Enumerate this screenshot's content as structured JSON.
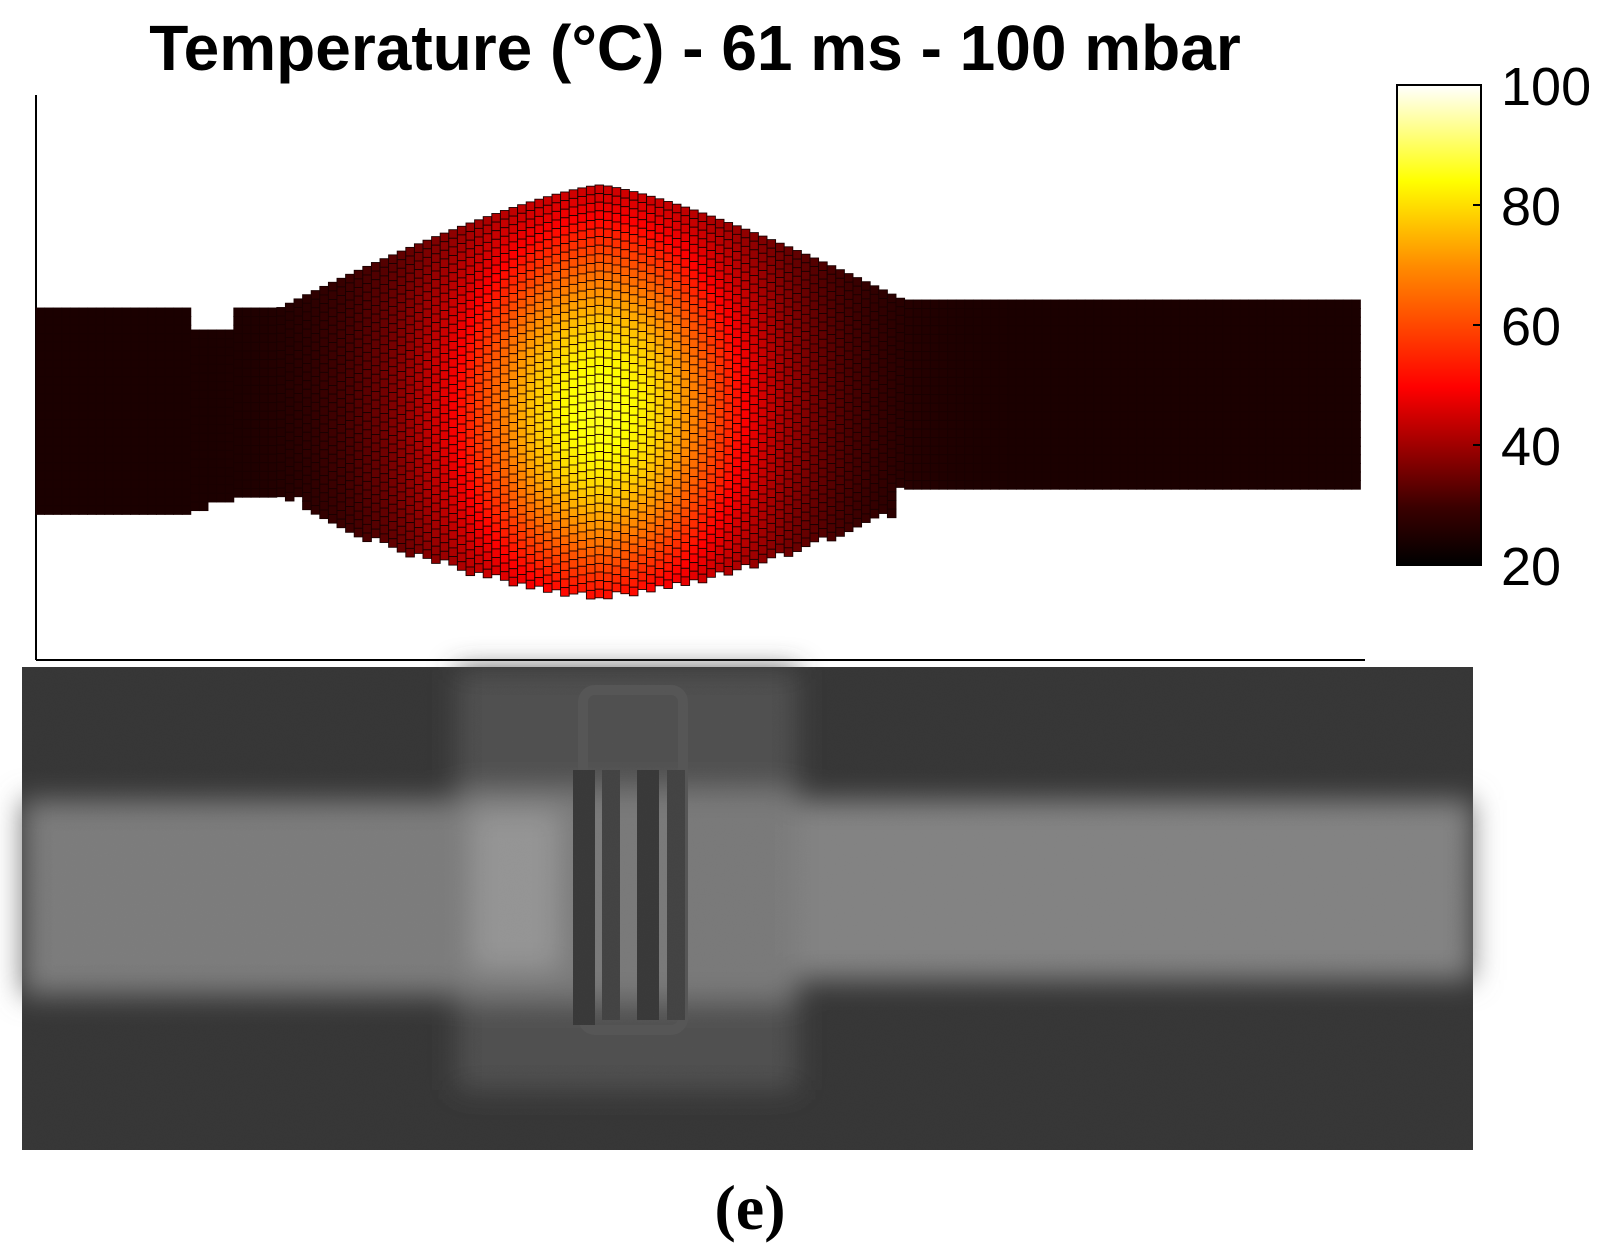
{
  "chart_data": {
    "type": "heatmap",
    "title": "Temperature (°C) - 61 ms - 100 mbar",
    "colormap": "hot",
    "colorbar": {
      "range": [
        20,
        100
      ],
      "ticks": [
        "100",
        "80",
        "60",
        "40",
        "20"
      ],
      "tick_values": [
        100,
        80,
        60,
        40,
        20
      ]
    },
    "grid": true,
    "hotspot": {
      "peak_temperature": 82,
      "ambient_temperature": 22
    },
    "panel_label": "(e)",
    "photo": {
      "description_visible": false
    }
  },
  "colors": {
    "cell_border": "#1a0000",
    "axis": "#000000",
    "background": "#ffffff",
    "photo_background": "#2b2b2b",
    "photo_tube": "#8a8a8a",
    "photo_band": "#606060"
  }
}
